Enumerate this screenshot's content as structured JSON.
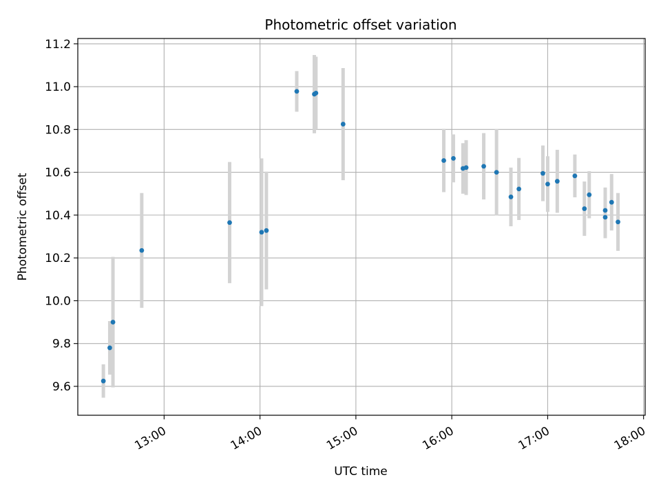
{
  "chart_data": {
    "type": "scatter",
    "title": "Photometric offset variation",
    "xlabel": "UTC time",
    "ylabel": "Photometric offset",
    "xlim": [
      "12:06",
      "18:01"
    ],
    "ylim": [
      9.465,
      11.225
    ],
    "x_ticks": [
      "13:00",
      "14:00",
      "15:00",
      "16:00",
      "17:00",
      "18:00"
    ],
    "y_ticks": [
      9.6,
      9.8,
      10.0,
      10.2,
      10.4,
      10.6,
      10.8,
      11.0,
      11.2
    ],
    "y_tick_labels": [
      "9.6",
      "9.8",
      "10.0",
      "10.2",
      "10.4",
      "10.6",
      "10.8",
      "11.0",
      "11.2"
    ],
    "grid": true,
    "series": [
      {
        "name": "",
        "marker_color": "#1f77b4",
        "errorbar_color": "#d3d3d3",
        "points": [
          {
            "x": "12:22",
            "y": 9.625,
            "err": 0.078
          },
          {
            "x": "12:26",
            "y": 9.78,
            "err": 0.125
          },
          {
            "x": "12:28",
            "y": 9.9,
            "err": 0.305
          },
          {
            "x": "12:46",
            "y": 10.235,
            "err": 0.268
          },
          {
            "x": "13:41",
            "y": 10.365,
            "err": 0.283
          },
          {
            "x": "14:01",
            "y": 10.32,
            "err": 0.345
          },
          {
            "x": "14:04",
            "y": 10.328,
            "err": 0.275
          },
          {
            "x": "14:23",
            "y": 10.978,
            "err": 0.095
          },
          {
            "x": "14:34",
            "y": 10.965,
            "err": 0.183
          },
          {
            "x": "14:35",
            "y": 10.97,
            "err": 0.17
          },
          {
            "x": "14:52",
            "y": 10.825,
            "err": 0.262
          },
          {
            "x": "15:55",
            "y": 10.655,
            "err": 0.148
          },
          {
            "x": "16:01",
            "y": 10.665,
            "err": 0.112
          },
          {
            "x": "16:07",
            "y": 10.618,
            "err": 0.118
          },
          {
            "x": "16:09",
            "y": 10.622,
            "err": 0.128
          },
          {
            "x": "16:20",
            "y": 10.628,
            "err": 0.155
          },
          {
            "x": "16:28",
            "y": 10.6,
            "err": 0.202
          },
          {
            "x": "16:37",
            "y": 10.485,
            "err": 0.137
          },
          {
            "x": "16:42",
            "y": 10.522,
            "err": 0.145
          },
          {
            "x": "16:57",
            "y": 10.595,
            "err": 0.13
          },
          {
            "x": "17:00",
            "y": 10.545,
            "err": 0.13
          },
          {
            "x": "17:06",
            "y": 10.558,
            "err": 0.147
          },
          {
            "x": "17:17",
            "y": 10.583,
            "err": 0.1
          },
          {
            "x": "17:23",
            "y": 10.43,
            "err": 0.127
          },
          {
            "x": "17:26",
            "y": 10.495,
            "err": 0.11
          },
          {
            "x": "17:36",
            "y": 10.39,
            "err": 0.098
          },
          {
            "x": "17:36",
            "y": 10.422,
            "err": 0.107
          },
          {
            "x": "17:40",
            "y": 10.46,
            "err": 0.132
          },
          {
            "x": "17:44",
            "y": 10.368,
            "err": 0.135
          }
        ]
      }
    ]
  }
}
